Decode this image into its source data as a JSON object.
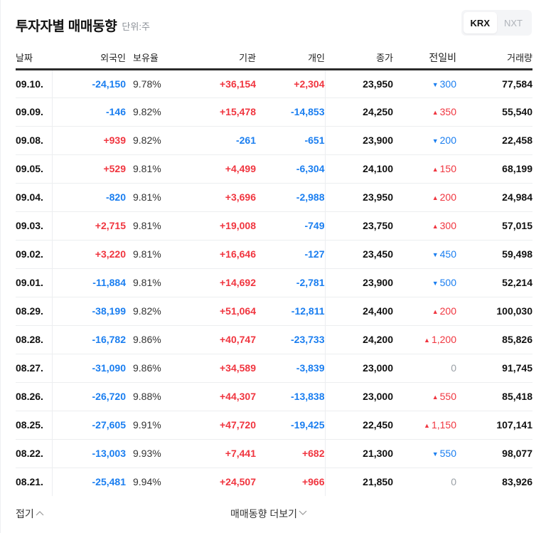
{
  "header": {
    "title": "투자자별 매매동향",
    "unit": "단위:주",
    "market_toggle": [
      {
        "label": "KRX",
        "active": true
      },
      {
        "label": "NXT",
        "active": false
      }
    ]
  },
  "table": {
    "columns": [
      "날짜",
      "외국인",
      "보유율",
      "기관",
      "개인",
      "종가",
      "전일비",
      "거래량"
    ],
    "rows": [
      {
        "date": "09.10.",
        "foreign": "-24,150",
        "holding": "9.78%",
        "institution": "+36,154",
        "individual": "+2,304",
        "close": "23,950",
        "change": "300",
        "change_dir": "down",
        "volume": "77,584"
      },
      {
        "date": "09.09.",
        "foreign": "-146",
        "holding": "9.82%",
        "institution": "+15,478",
        "individual": "-14,853",
        "close": "24,250",
        "change": "350",
        "change_dir": "up",
        "volume": "55,540"
      },
      {
        "date": "09.08.",
        "foreign": "+939",
        "holding": "9.82%",
        "institution": "-261",
        "individual": "-651",
        "close": "23,900",
        "change": "200",
        "change_dir": "down",
        "volume": "22,458"
      },
      {
        "date": "09.05.",
        "foreign": "+529",
        "holding": "9.81%",
        "institution": "+4,499",
        "individual": "-6,304",
        "close": "24,100",
        "change": "150",
        "change_dir": "up",
        "volume": "68,199"
      },
      {
        "date": "09.04.",
        "foreign": "-820",
        "holding": "9.81%",
        "institution": "+3,696",
        "individual": "-2,988",
        "close": "23,950",
        "change": "200",
        "change_dir": "up",
        "volume": "24,984"
      },
      {
        "date": "09.03.",
        "foreign": "+2,715",
        "holding": "9.81%",
        "institution": "+19,008",
        "individual": "-749",
        "close": "23,750",
        "change": "300",
        "change_dir": "up",
        "volume": "57,015"
      },
      {
        "date": "09.02.",
        "foreign": "+3,220",
        "holding": "9.81%",
        "institution": "+16,646",
        "individual": "-127",
        "close": "23,450",
        "change": "450",
        "change_dir": "down",
        "volume": "59,498"
      },
      {
        "date": "09.01.",
        "foreign": "-11,884",
        "holding": "9.81%",
        "institution": "+14,692",
        "individual": "-2,781",
        "close": "23,900",
        "change": "500",
        "change_dir": "down",
        "volume": "52,214"
      },
      {
        "date": "08.29.",
        "foreign": "-38,199",
        "holding": "9.82%",
        "institution": "+51,064",
        "individual": "-12,811",
        "close": "24,400",
        "change": "200",
        "change_dir": "up",
        "volume": "100,030"
      },
      {
        "date": "08.28.",
        "foreign": "-16,782",
        "holding": "9.86%",
        "institution": "+40,747",
        "individual": "-23,733",
        "close": "24,200",
        "change": "1,200",
        "change_dir": "up",
        "volume": "85,826"
      },
      {
        "date": "08.27.",
        "foreign": "-31,090",
        "holding": "9.86%",
        "institution": "+34,589",
        "individual": "-3,839",
        "close": "23,000",
        "change": "0",
        "change_dir": "flat",
        "volume": "91,745"
      },
      {
        "date": "08.26.",
        "foreign": "-26,720",
        "holding": "9.88%",
        "institution": "+44,307",
        "individual": "-13,838",
        "close": "23,000",
        "change": "550",
        "change_dir": "up",
        "volume": "85,418"
      },
      {
        "date": "08.25.",
        "foreign": "-27,605",
        "holding": "9.91%",
        "institution": "+47,720",
        "individual": "-19,425",
        "close": "22,450",
        "change": "1,150",
        "change_dir": "up",
        "volume": "107,141"
      },
      {
        "date": "08.22.",
        "foreign": "-13,003",
        "holding": "9.93%",
        "institution": "+7,441",
        "individual": "+682",
        "close": "21,300",
        "change": "550",
        "change_dir": "down",
        "volume": "98,077"
      },
      {
        "date": "08.21.",
        "foreign": "-25,481",
        "holding": "9.94%",
        "institution": "+24,507",
        "individual": "+966",
        "close": "21,850",
        "change": "0",
        "change_dir": "flat",
        "volume": "83,926"
      }
    ]
  },
  "footer": {
    "fold_label": "접기",
    "fold_icon": "chevron-up-icon",
    "more_label": "매매동향 더보기",
    "more_icon": "chevron-down-icon"
  },
  "colors": {
    "up": "#f0353f",
    "down": "#1a7ef0",
    "flat": "#9aa0a6",
    "text": "#111111"
  }
}
